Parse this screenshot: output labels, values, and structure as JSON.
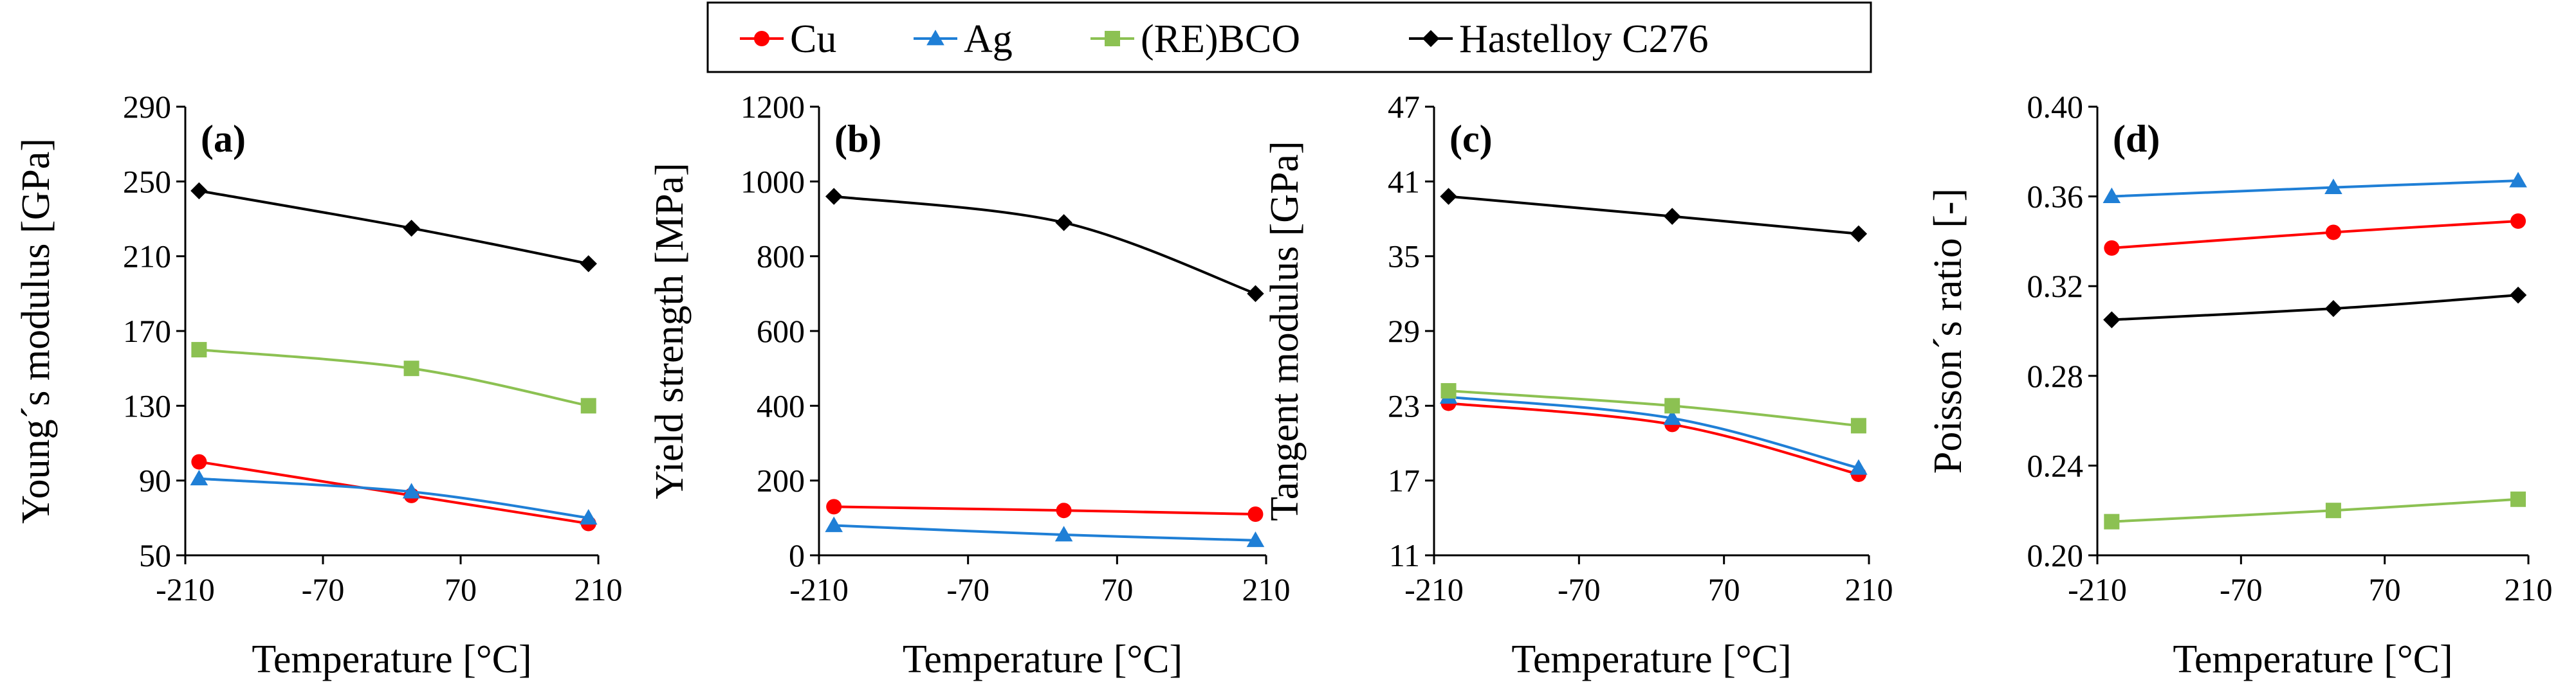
{
  "legend": [
    {
      "label": "Cu",
      "color": "#ff0000",
      "marker": "circle"
    },
    {
      "label": "Ag",
      "color": "#1f7fd6",
      "marker": "triangle"
    },
    {
      "label": "(RE)BCO",
      "color": "#8cc152",
      "marker": "square"
    },
    {
      "label": "Hastelloy C276",
      "color": "#000000",
      "marker": "diamond"
    }
  ],
  "chart_data": [
    {
      "type": "line",
      "panel": "(a)",
      "xlabel": "Temperature [°C]",
      "ylabel": "Young´s modulus [GPa]",
      "xlim": [
        -210,
        210
      ],
      "ylim": [
        50,
        290
      ],
      "xticks": [
        "-210",
        "-70",
        "70",
        "210"
      ],
      "yticks": [
        "50",
        "90",
        "130",
        "170",
        "210",
        "250",
        "290"
      ],
      "x": [
        -196,
        20,
        200
      ],
      "series": [
        {
          "name": "Cu",
          "values": [
            100,
            82,
            67
          ]
        },
        {
          "name": "Ag",
          "values": [
            91,
            84,
            70
          ]
        },
        {
          "name": "(RE)BCO",
          "values": [
            160,
            150,
            130
          ]
        },
        {
          "name": "Hastelloy C276",
          "values": [
            245,
            225,
            206
          ]
        }
      ]
    },
    {
      "type": "line",
      "panel": "(b)",
      "xlabel": "Temperature [°C]",
      "ylabel": "Yield strength [MPa]",
      "xlim": [
        -210,
        210
      ],
      "ylim": [
        0,
        1200
      ],
      "xticks": [
        "-210",
        "-70",
        "70",
        "210"
      ],
      "yticks": [
        "0",
        "200",
        "400",
        "600",
        "800",
        "1000",
        "1200"
      ],
      "x": [
        -196,
        20,
        200
      ],
      "series": [
        {
          "name": "Cu",
          "values": [
            130,
            120,
            110
          ]
        },
        {
          "name": "Ag",
          "values": [
            80,
            55,
            40
          ]
        },
        {
          "name": "Hastelloy C276",
          "values": [
            960,
            890,
            700
          ]
        }
      ]
    },
    {
      "type": "line",
      "panel": "(c)",
      "xlabel": "Temperature [°C]",
      "ylabel": "Tangent modulus [GPa]",
      "xlim": [
        -210,
        210
      ],
      "ylim": [
        11,
        47
      ],
      "xticks": [
        "-210",
        "-70",
        "70",
        "210"
      ],
      "yticks": [
        "11",
        "17",
        "23",
        "29",
        "35",
        "41",
        "47"
      ],
      "x": [
        -196,
        20,
        200
      ],
      "series": [
        {
          "name": "Cu",
          "values": [
            23.2,
            21.5,
            17.5
          ]
        },
        {
          "name": "Ag",
          "values": [
            23.7,
            22,
            18
          ]
        },
        {
          "name": "(RE)BCO",
          "values": [
            24.2,
            23,
            21.4
          ]
        },
        {
          "name": "Hastelloy C276",
          "values": [
            39.8,
            38.2,
            36.8
          ]
        }
      ]
    },
    {
      "type": "line",
      "panel": "(d)",
      "xlabel": "Temperature [°C]",
      "ylabel": "Poisson´s ratio [-]",
      "xlim": [
        -210,
        210
      ],
      "ylim": [
        0.2,
        0.4
      ],
      "xticks": [
        "-210",
        "-70",
        "70",
        "210"
      ],
      "yticks": [
        "0.20",
        "0.24",
        "0.28",
        "0.32",
        "0.36",
        "0.40"
      ],
      "x": [
        -196,
        20,
        200
      ],
      "series": [
        {
          "name": "Cu",
          "values": [
            0.337,
            0.344,
            0.349
          ]
        },
        {
          "name": "Ag",
          "values": [
            0.36,
            0.364,
            0.367
          ]
        },
        {
          "name": "(RE)BCO",
          "values": [
            0.215,
            0.22,
            0.225
          ]
        },
        {
          "name": "Hastelloy C276",
          "values": [
            0.305,
            0.31,
            0.316
          ]
        }
      ]
    }
  ]
}
